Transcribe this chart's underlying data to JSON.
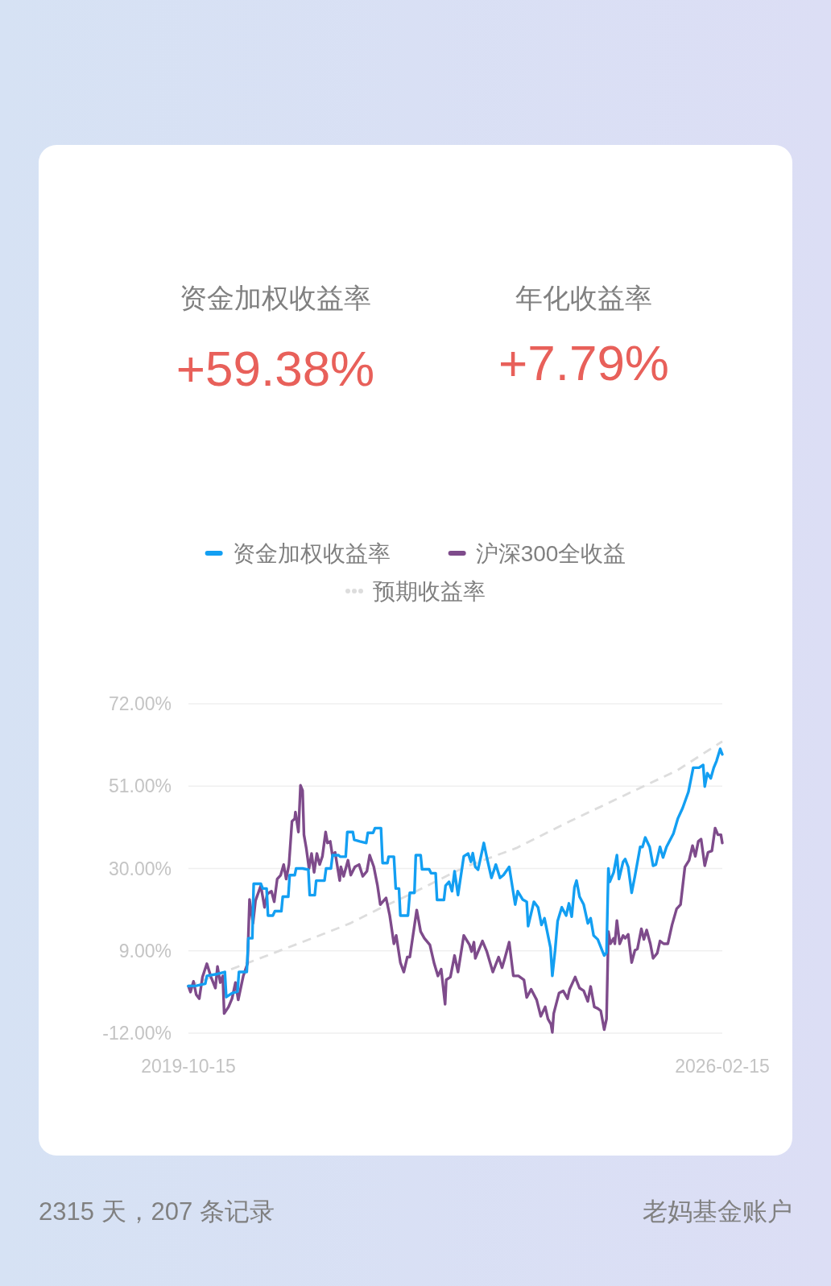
{
  "chart_data": {
    "type": "line",
    "annotations": [
      "资金加权收益率",
      "+59.38%",
      "年化收益率",
      "+7.79%",
      "2315 天，207 条记录",
      "老妈基金账户"
    ],
    "xlim": [
      "2019-10-15",
      "2026-02-15"
    ],
    "xticks": [
      "2019-10-15",
      "2026-02-15"
    ],
    "ylim": [
      -12,
      72
    ],
    "yticks": [
      {
        "value": -12,
        "label": "-12.00%"
      },
      {
        "value": 9,
        "label": "9.00%"
      },
      {
        "value": 30,
        "label": "30.00%"
      },
      {
        "value": 51,
        "label": "51.00%"
      },
      {
        "value": 72,
        "label": "72.00%"
      }
    ],
    "grid": "y",
    "legend": "top",
    "line_style": "solid",
    "series": [
      {
        "name": "资金加权收益率",
        "color": "#139ff2",
        "x": [
          "2019-10-15",
          "2019-11-18",
          "2019-12-27",
          "2020-01-03",
          "2020-02-18",
          "2020-03-21",
          "2020-03-27",
          "2020-04-21",
          "2020-05-15",
          "2020-05-21",
          "2020-06-24",
          "2020-07-01",
          "2020-07-18",
          "2020-07-24",
          "2020-08-24",
          "2020-09-01",
          "2020-09-18",
          "2020-09-24",
          "2020-10-15",
          "2020-10-24",
          "2020-11-21",
          "2020-11-27",
          "2020-12-21",
          "2020-12-27",
          "2021-01-18",
          "2021-01-24",
          "2021-02-21",
          "2021-03-18",
          "2021-03-24",
          "2021-04-15",
          "2021-04-21",
          "2021-05-27",
          "2021-06-03",
          "2021-06-24",
          "2021-07-01",
          "2021-07-27",
          "2021-08-03",
          "2021-08-27",
          "2021-09-03",
          "2021-09-27",
          "2021-10-03",
          "2021-10-27",
          "2021-11-24",
          "2021-12-01",
          "2021-12-24",
          "2022-01-01",
          "2022-01-27",
          "2022-02-03",
          "2022-02-24",
          "2022-03-01",
          "2022-03-24",
          "2022-04-01",
          "2022-04-15",
          "2022-04-21",
          "2022-05-24",
          "2022-06-01",
          "2022-06-21",
          "2022-06-27",
          "2022-07-18",
          "2022-07-24",
          "2022-08-24",
          "2022-09-01",
          "2022-09-21",
          "2022-09-27",
          "2022-10-27",
          "2022-11-03",
          "2022-11-18",
          "2022-12-01",
          "2022-12-12",
          "2022-12-27",
          "2023-01-21",
          "2023-02-09",
          "2023-02-21",
          "2023-03-01",
          "2023-03-12",
          "2023-03-24",
          "2023-04-18",
          "2023-05-01",
          "2023-05-21",
          "2023-06-09",
          "2023-06-27",
          "2023-07-12",
          "2023-08-06",
          "2023-09-01",
          "2023-09-12",
          "2023-10-03",
          "2023-10-21",
          "2023-10-27",
          "2023-11-21",
          "2023-12-09",
          "2023-12-24",
          "2024-01-06",
          "2024-02-01",
          "2024-02-09",
          "2024-02-21",
          "2024-03-03",
          "2024-03-21",
          "2024-04-09",
          "2024-04-21",
          "2024-05-03",
          "2024-05-15",
          "2024-05-24",
          "2024-06-06",
          "2024-06-24",
          "2024-07-12",
          "2024-07-24",
          "2024-08-06",
          "2024-08-24",
          "2024-09-12",
          "2024-09-21",
          "2024-10-01",
          "2024-10-09",
          "2024-10-15",
          "2024-11-01",
          "2024-11-15",
          "2024-11-24",
          "2024-12-12",
          "2024-12-21",
          "2025-01-03",
          "2025-01-18",
          "2025-02-01",
          "2025-02-24",
          "2025-03-06",
          "2025-03-18",
          "2025-04-06",
          "2025-04-21",
          "2025-05-03",
          "2025-05-21",
          "2025-06-03",
          "2025-06-18",
          "2025-07-18",
          "2025-08-06",
          "2025-08-27",
          "2025-09-21",
          "2025-10-12",
          "2025-11-06",
          "2025-11-24",
          "2025-12-01",
          "2025-12-12",
          "2025-12-27",
          "2026-01-09",
          "2026-01-21",
          "2026-02-06",
          "2026-02-15"
        ],
        "values": [
          0,
          0.1,
          0.6,
          2.6,
          3.1,
          3.6,
          -2.8,
          -1.8,
          -1.4,
          3.6,
          3.6,
          12.2,
          12.2,
          26.1,
          26.1,
          24.9,
          24.9,
          18.0,
          18.0,
          19.1,
          19.1,
          22.8,
          22.8,
          28.3,
          28.3,
          30.0,
          30.0,
          29.7,
          23.2,
          23.2,
          26.9,
          26.9,
          30.0,
          30.0,
          33.4,
          33.4,
          33.0,
          33.0,
          39.3,
          39.3,
          37.3,
          36.9,
          36.5,
          39.1,
          39.1,
          40.3,
          40.3,
          31.4,
          31.4,
          33.0,
          33.0,
          24.9,
          24.9,
          18.0,
          18.0,
          23.8,
          23.8,
          33.4,
          33.4,
          29.8,
          29.8,
          28.8,
          28.8,
          22.0,
          22.0,
          25.6,
          26.6,
          24.2,
          29.3,
          23.2,
          33.1,
          33.8,
          31.7,
          33.9,
          30.4,
          29.7,
          36.5,
          32.8,
          27.6,
          31.0,
          27.6,
          28.3,
          30.4,
          20.8,
          24.2,
          22.1,
          21.5,
          15.3,
          21.5,
          20.1,
          15.6,
          17.3,
          9.8,
          2.6,
          9.1,
          16.6,
          20.1,
          18.0,
          21.1,
          17.7,
          25.2,
          26.9,
          22.8,
          20.8,
          16.0,
          17.3,
          12.9,
          11.9,
          9.1,
          7.8,
          8.5,
          30.0,
          26.6,
          29.0,
          33.4,
          27.3,
          31.7,
          32.4,
          30.4,
          23.8,
          28.0,
          35.5,
          35.5,
          37.9,
          35.5,
          30.7,
          31.0,
          35.5,
          32.8,
          35.5,
          38.9,
          42.7,
          45.4,
          49.5,
          55.7,
          55.7,
          56.4,
          50.9,
          54.3,
          53.0,
          55.7,
          57.4,
          60.5,
          59.1
        ]
      },
      {
        "name": "沪深300全收益",
        "color": "#7e4b8b",
        "x": [
          "2019-10-15",
          "2019-10-24",
          "2019-11-06",
          "2019-11-18",
          "2019-12-01",
          "2019-12-15",
          "2020-01-03",
          "2020-01-21",
          "2020-02-09",
          "2020-02-18",
          "2020-03-01",
          "2020-03-12",
          "2020-03-18",
          "2020-04-06",
          "2020-04-21",
          "2020-05-06",
          "2020-05-18",
          "2020-06-09",
          "2020-06-27",
          "2020-07-06",
          "2020-07-21",
          "2020-08-01",
          "2020-08-24",
          "2020-09-09",
          "2020-09-21",
          "2020-10-09",
          "2020-10-21",
          "2020-11-03",
          "2020-11-18",
          "2020-12-01",
          "2020-12-12",
          "2020-12-24",
          "2021-01-06",
          "2021-01-18",
          "2021-01-21",
          "2021-02-03",
          "2021-02-12",
          "2021-02-21",
          "2021-02-27",
          "2021-03-09",
          "2021-03-21",
          "2021-04-01",
          "2021-04-12",
          "2021-04-24",
          "2021-05-06",
          "2021-05-18",
          "2021-06-01",
          "2021-06-09",
          "2021-06-21",
          "2021-07-01",
          "2021-07-12",
          "2021-08-01",
          "2021-08-06",
          "2021-08-18",
          "2021-09-06",
          "2021-09-18",
          "2021-10-06",
          "2021-10-24",
          "2021-11-09",
          "2021-11-27",
          "2021-12-09",
          "2021-12-27",
          "2022-01-12",
          "2022-01-24",
          "2022-02-18",
          "2022-03-06",
          "2022-03-24",
          "2022-04-03",
          "2022-04-21",
          "2022-05-06",
          "2022-05-21",
          "2022-06-01",
          "2022-07-01",
          "2022-07-18",
          "2022-08-03",
          "2022-08-27",
          "2022-09-15",
          "2022-10-01",
          "2022-10-15",
          "2022-11-01",
          "2022-11-06",
          "2022-11-24",
          "2022-12-12",
          "2022-12-27",
          "2023-01-21",
          "2023-02-15",
          "2023-02-24",
          "2023-03-06",
          "2023-03-12",
          "2023-04-12",
          "2023-05-01",
          "2023-05-27",
          "2023-06-21",
          "2023-07-06",
          "2023-07-18",
          "2023-08-06",
          "2023-08-24",
          "2023-09-15",
          "2023-10-09",
          "2023-10-21",
          "2023-11-09",
          "2023-12-03",
          "2023-12-21",
          "2024-01-09",
          "2024-01-21",
          "2024-02-03",
          "2024-02-09",
          "2024-02-15",
          "2024-03-09",
          "2024-03-27",
          "2024-04-15",
          "2024-04-24",
          "2024-05-18",
          "2024-06-06",
          "2024-06-24",
          "2024-07-12",
          "2024-07-24",
          "2024-08-09",
          "2024-08-24",
          "2024-09-06",
          "2024-09-21",
          "2024-10-01",
          "2024-10-09",
          "2024-10-18",
          "2024-11-01",
          "2024-11-06",
          "2024-11-15",
          "2024-11-27",
          "2024-12-12",
          "2024-12-21",
          "2025-01-03",
          "2025-01-18",
          "2025-02-01",
          "2025-02-12",
          "2025-03-01",
          "2025-03-12",
          "2025-03-24",
          "2025-04-09",
          "2025-04-21",
          "2025-05-09",
          "2025-05-21",
          "2025-06-06",
          "2025-06-24",
          "2025-07-12",
          "2025-08-01",
          "2025-08-18",
          "2025-09-06",
          "2025-09-24",
          "2025-10-09",
          "2025-10-21",
          "2025-11-03",
          "2025-11-15",
          "2025-12-01",
          "2025-12-15",
          "2026-01-01",
          "2026-01-15",
          "2026-01-27",
          "2026-02-09",
          "2026-02-15"
        ],
        "values": [
          0,
          -1.5,
          1.2,
          -2.2,
          -3.2,
          2.3,
          5.7,
          2.3,
          -0.5,
          5.0,
          0.9,
          2.6,
          -7.0,
          -5.3,
          -3.2,
          0.9,
          -3.5,
          2.6,
          5.7,
          22.1,
          16.0,
          21.8,
          25.6,
          20.1,
          23.5,
          24.2,
          21.5,
          27.3,
          28.3,
          31.0,
          27.3,
          31.0,
          42.0,
          42.7,
          44.4,
          39.3,
          51.2,
          49.9,
          38.6,
          35.2,
          30.0,
          33.8,
          29.0,
          33.8,
          31.0,
          33.1,
          39.3,
          36.5,
          36.9,
          33.1,
          34.1,
          26.9,
          30.4,
          28.0,
          32.1,
          28.3,
          30.4,
          31.0,
          28.0,
          29.3,
          33.4,
          30.4,
          25.6,
          20.8,
          22.5,
          18.0,
          10.8,
          12.9,
          6.0,
          3.6,
          7.4,
          7.4,
          19.4,
          13.9,
          12.2,
          10.5,
          5.7,
          2.6,
          4.3,
          -4.6,
          1.6,
          2.3,
          7.8,
          3.6,
          12.9,
          10.5,
          8.8,
          11.2,
          7.1,
          11.5,
          8.8,
          3.6,
          7.4,
          4.7,
          7.1,
          11.2,
          2.6,
          2.6,
          1.6,
          -2.9,
          -0.8,
          -3.5,
          -7.7,
          -5.3,
          -8.4,
          -9.7,
          -11.8,
          -7.0,
          -1.8,
          -1.2,
          -3.2,
          -0.8,
          2.3,
          -0.5,
          -1.2,
          -3.9,
          -0.1,
          -5.3,
          -5.7,
          -6.3,
          -11.1,
          -8.4,
          13.9,
          10.8,
          12.2,
          10.8,
          16.7,
          10.8,
          12.9,
          12.2,
          13.2,
          6.0,
          9.1,
          9.5,
          14.6,
          11.9,
          14.3,
          10.8,
          7.1,
          8.4,
          11.5,
          10.8,
          10.8,
          15.6,
          19.7,
          20.8,
          30.4,
          32.1,
          35.8,
          33.1,
          36.9,
          37.5,
          30.7,
          34.1,
          34.5,
          40.3,
          38.6,
          38.6,
          36.5
        ]
      },
      {
        "name": "预期收益率",
        "color": "#dddddd",
        "line_style": "dashed",
        "x": [
          "2019-10-15",
          "2020-04-18",
          "2021-05-18",
          "2021-09-15",
          "2022-02-01",
          "2022-06-06",
          "2022-10-12",
          "2023-01-27",
          "2023-09-06",
          "2024-04-24",
          "2024-12-12",
          "2025-08-03",
          "2026-02-15"
        ],
        "values": [
          0,
          4.3,
          13.2,
          16.0,
          20.1,
          23.5,
          27.3,
          30.4,
          35.2,
          42.0,
          48.5,
          55.0,
          62.4
        ]
      }
    ]
  }
}
